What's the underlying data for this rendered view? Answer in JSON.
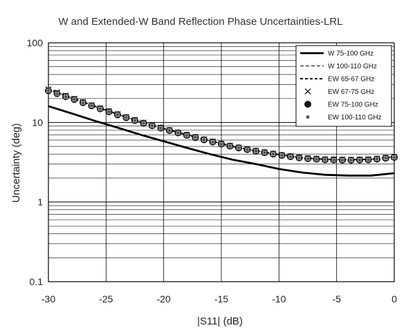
{
  "chart_data": {
    "type": "line",
    "title": "W and Extended-W Band Reflection Phase Uncertainties-LRL",
    "xlabel": "|S11| (dB)",
    "ylabel": "Uncertainty (deg)",
    "xlim": [
      -30,
      0
    ],
    "ylim": [
      0.1,
      100
    ],
    "yscale": "log",
    "grid": true,
    "legend_position": "top-right",
    "x_ticks": [
      "-30",
      "-25",
      "-20",
      "-15",
      "-10",
      "-5",
      "0"
    ],
    "y_ticks": [
      "0.1",
      "1",
      "10",
      "100"
    ],
    "series": [
      {
        "name": "W 75-100 GHz",
        "style": "solid-thick",
        "color": "#000000",
        "x": [
          -30,
          -28,
          -26,
          -24,
          -22,
          -20,
          -18,
          -16,
          -14,
          -12,
          -10,
          -8,
          -6,
          -4,
          -2,
          0
        ],
        "y": [
          16,
          13,
          10.5,
          8.6,
          7.0,
          5.8,
          4.8,
          4.0,
          3.4,
          3.0,
          2.6,
          2.35,
          2.2,
          2.15,
          2.15,
          2.3
        ]
      },
      {
        "name": "W 100-110 GHz",
        "style": "dashed-thin",
        "color": "#000000",
        "x": [
          -30,
          -28,
          -26,
          -24,
          -22,
          -20,
          -18,
          -16,
          -14,
          -12,
          -10,
          -8,
          -6,
          -4,
          -2,
          0
        ],
        "y": [
          26,
          20.5,
          16,
          12.7,
          10.2,
          8.4,
          7.0,
          5.9,
          5.0,
          4.4,
          3.95,
          3.6,
          3.45,
          3.4,
          3.45,
          3.7
        ]
      },
      {
        "name": "EW 65-67 GHz",
        "style": "dashed-thick",
        "color": "#000000",
        "x": [
          -30,
          -28,
          -26,
          -24,
          -22,
          -20,
          -18,
          -16,
          -14,
          -12,
          -10,
          -8,
          -6,
          -4,
          -2,
          0
        ],
        "y": [
          26,
          20.5,
          16,
          12.7,
          10.2,
          8.4,
          7.0,
          5.9,
          5.0,
          4.4,
          3.95,
          3.6,
          3.45,
          3.4,
          3.45,
          3.7
        ]
      },
      {
        "name": "EW 67-75 GHz",
        "style": "marker-x",
        "color": "#000000",
        "x": [
          -30,
          -28,
          -26,
          -24,
          -22,
          -20,
          -18,
          -16,
          -14,
          -12,
          -10,
          -8,
          -6,
          -4,
          -2,
          0
        ],
        "y": [
          26,
          20.5,
          16,
          12.7,
          10.2,
          8.4,
          7.0,
          5.9,
          5.0,
          4.4,
          3.95,
          3.6,
          3.45,
          3.4,
          3.45,
          3.7
        ]
      },
      {
        "name": "EW 75-100 GHz",
        "style": "marker-dot",
        "color": "#111111",
        "x": [
          -30,
          -28,
          -26,
          -24,
          -22,
          -20,
          -18,
          -16,
          -14,
          -12,
          -10,
          -8,
          -6,
          -4,
          -2,
          0
        ],
        "y": [
          25,
          20,
          15.7,
          12.5,
          10.0,
          8.3,
          6.9,
          5.8,
          4.95,
          4.35,
          3.9,
          3.55,
          3.4,
          3.35,
          3.4,
          3.65
        ]
      },
      {
        "name": "EW 100-110 GHz",
        "style": "marker-square",
        "color": "#555555",
        "x": [
          -30,
          -28,
          -26,
          -24,
          -22,
          -20,
          -18,
          -16,
          -14,
          -12,
          -10,
          -8,
          -6,
          -4,
          -2,
          0
        ],
        "y": [
          25,
          20,
          15.7,
          12.5,
          10.0,
          8.3,
          6.9,
          5.8,
          4.95,
          4.35,
          3.9,
          3.55,
          3.4,
          3.35,
          3.4,
          3.65
        ]
      }
    ]
  }
}
